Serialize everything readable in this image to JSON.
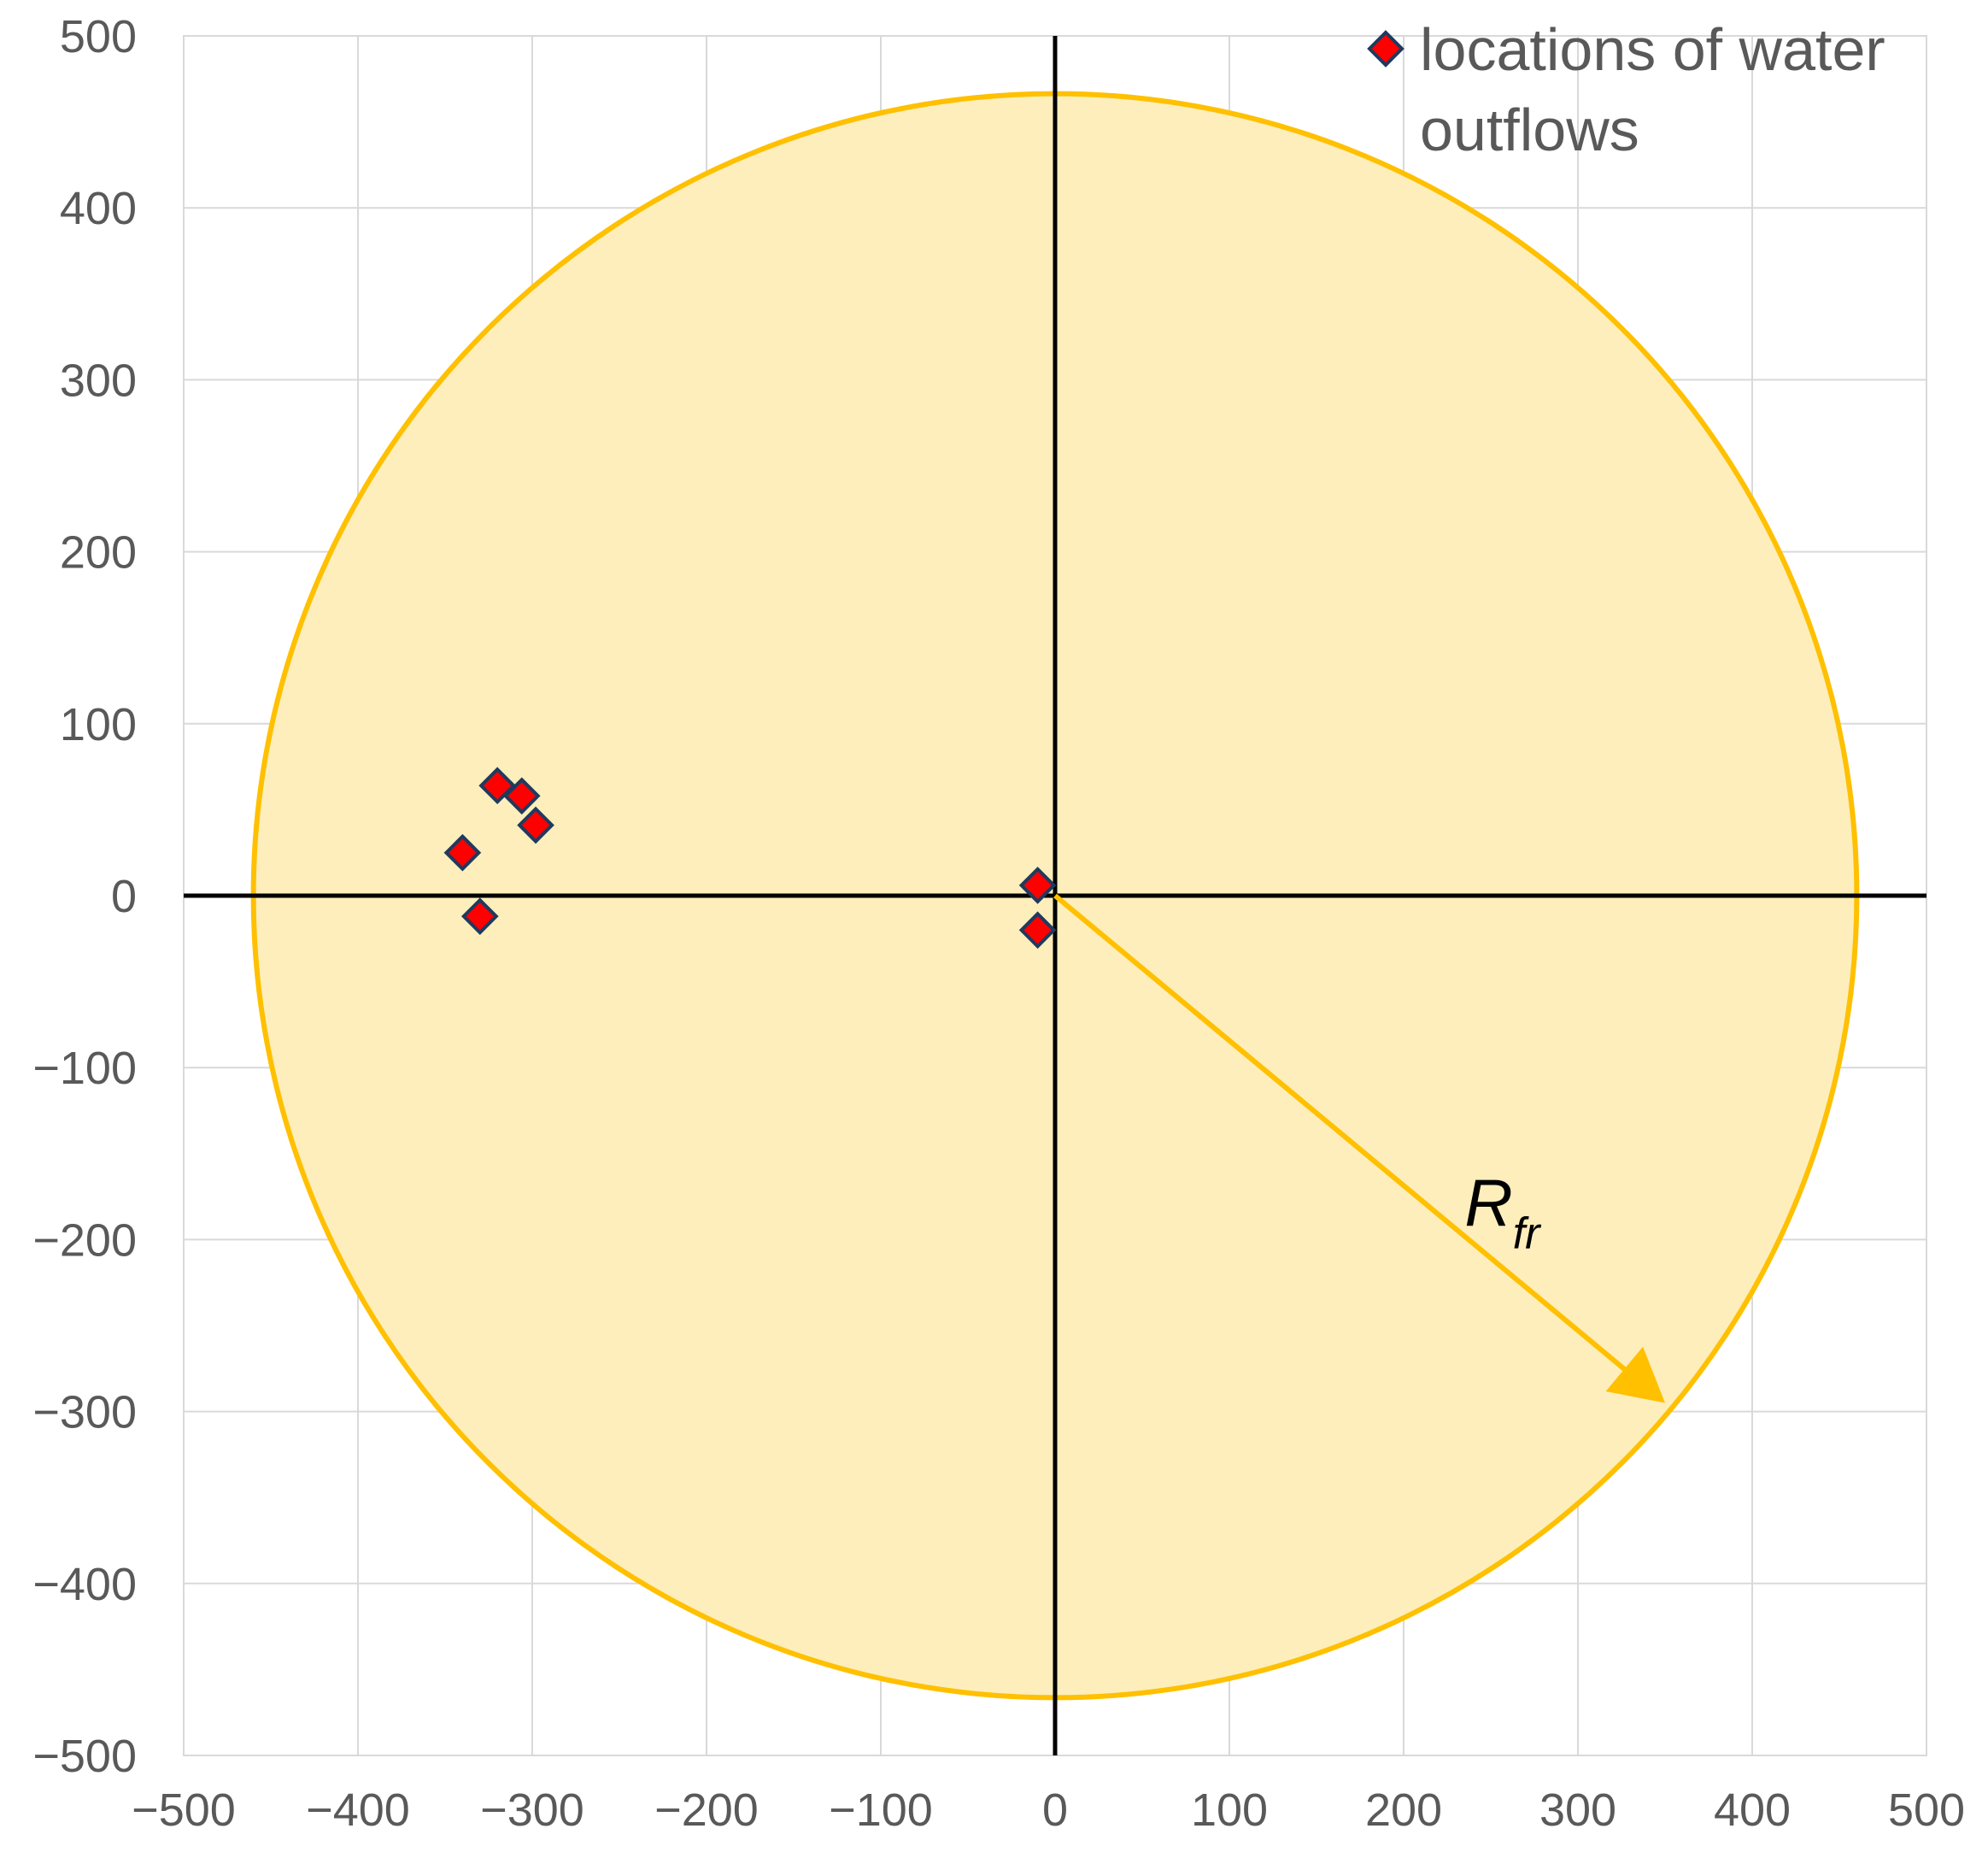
{
  "chart_data": {
    "type": "scatter",
    "xlim": [
      -500,
      500
    ],
    "ylim": [
      -500,
      500
    ],
    "x_ticks": [
      -500,
      -400,
      -300,
      -200,
      -100,
      0,
      100,
      200,
      300,
      400,
      500
    ],
    "y_ticks": [
      500,
      400,
      300,
      200,
      100,
      0,
      -100,
      -200,
      -300,
      -400,
      -500
    ],
    "x_tick_labels": [
      "−500",
      "−400",
      "−300",
      "−200",
      "−100",
      "0",
      "100",
      "200",
      "300",
      "400",
      "500"
    ],
    "y_tick_labels": [
      "500",
      "400",
      "300",
      "200",
      "100",
      "0",
      "−100",
      "−200",
      "−300",
      "−400",
      "−500"
    ],
    "grid": true,
    "legend_position": "top-right",
    "series": [
      {
        "name": "locations of water outflows",
        "legend_lines": [
          "locations of water",
          "outflows"
        ],
        "marker": "diamond",
        "color": "#ff0000",
        "edge_color": "#1f3a5f",
        "points": [
          {
            "x": -320,
            "y": 64
          },
          {
            "x": -306,
            "y": 58
          },
          {
            "x": -298,
            "y": 41
          },
          {
            "x": -340,
            "y": 25
          },
          {
            "x": -330,
            "y": -12
          },
          {
            "x": -10,
            "y": 6
          },
          {
            "x": -10,
            "y": -20
          }
        ]
      }
    ],
    "circle": {
      "center": [
        0,
        0
      ],
      "radius": 460,
      "fill": "#fdeebb",
      "stroke": "#ffc000"
    },
    "arrow": {
      "from": [
        0,
        0
      ],
      "to": [
        350,
        -295
      ],
      "color": "#ffc000",
      "label_main": "R",
      "label_sub": "fr"
    }
  }
}
